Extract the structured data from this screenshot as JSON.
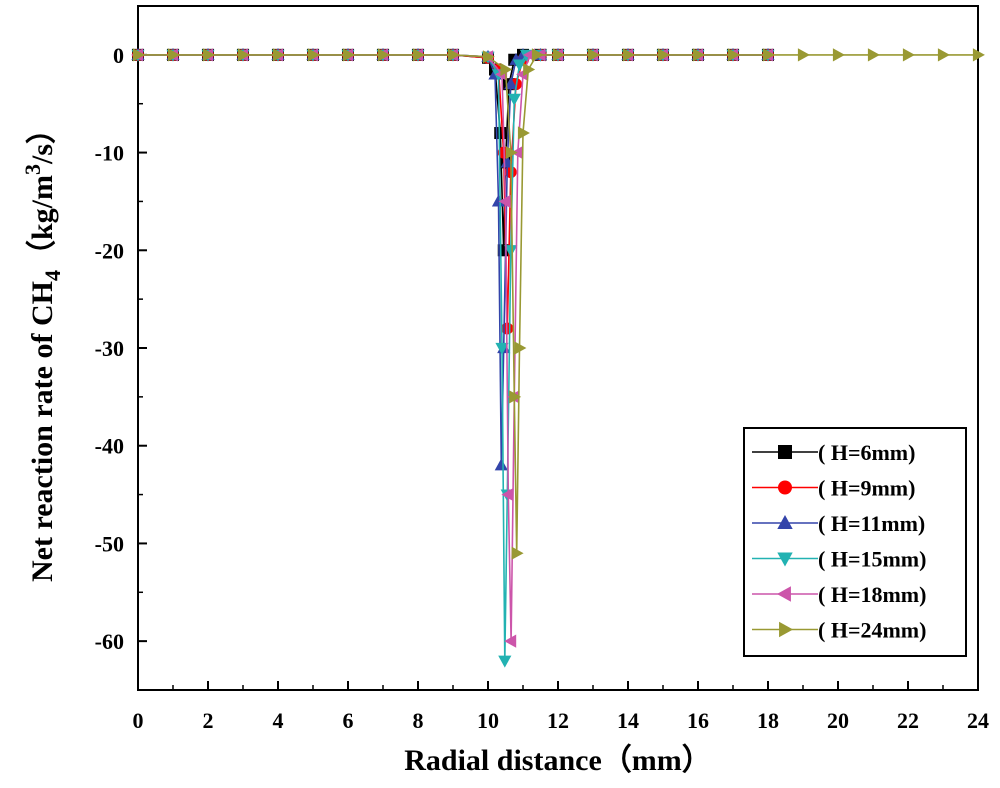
{
  "chart_data": {
    "type": "line",
    "title": "",
    "xlabel": "Radial distance（mm）",
    "ylabel": {
      "main": "Net reaction rate of CH",
      "sub": "4",
      "unit_pre": "（kg/m",
      "sup": "3",
      "unit_post": "/s）"
    },
    "xlim": [
      0,
      24
    ],
    "ylim": [
      -65,
      5
    ],
    "xticks": [
      0,
      2,
      4,
      6,
      8,
      10,
      12,
      14,
      16,
      18,
      20,
      22,
      24
    ],
    "yticks": [
      0,
      -10,
      -20,
      -30,
      -40,
      -50,
      -60
    ],
    "grid": false,
    "legend_position": "bottom-right",
    "series": [
      {
        "name": "( H=6mm)",
        "color": "#000000",
        "marker": "square",
        "dash": "solid",
        "x": [
          0,
          1,
          2,
          3,
          4,
          5,
          6,
          7,
          8,
          9,
          10,
          10.2,
          10.35,
          10.45,
          10.5,
          10.6,
          10.75,
          11.0,
          11.5,
          12,
          13,
          14,
          15,
          16,
          17,
          18
        ],
        "y": [
          0,
          0,
          0,
          0,
          0,
          0,
          0,
          0,
          0,
          0,
          -0.3,
          -1.5,
          -8,
          -20,
          -11,
          -3,
          -0.5,
          0,
          0,
          0,
          0,
          0,
          0,
          0,
          0,
          0
        ]
      },
      {
        "name": "( H=9mm)",
        "color": "#ff0000",
        "marker": "circle",
        "dash": "solid",
        "x": [
          0,
          1,
          2,
          3,
          4,
          5,
          6,
          7,
          8,
          9,
          10,
          10.3,
          10.45,
          10.55,
          10.65,
          10.8,
          11.0,
          11.5,
          12,
          13,
          14,
          15,
          16,
          17,
          18
        ],
        "y": [
          0,
          0,
          0,
          0,
          0,
          0,
          0,
          0,
          0,
          0,
          -0.3,
          -1.5,
          -10,
          -28,
          -12,
          -3,
          -0.5,
          0,
          0,
          0,
          0,
          0,
          0,
          0,
          0
        ]
      },
      {
        "name": "( H=11mm)",
        "color": "#3344aa",
        "marker": "triangle-up",
        "dash": "solid",
        "x": [
          0,
          1,
          2,
          3,
          4,
          5,
          6,
          7,
          8,
          9,
          10,
          10.2,
          10.3,
          10.38,
          10.45,
          10.55,
          10.65,
          10.8,
          11.0,
          11.5,
          12,
          13,
          14,
          15,
          16,
          17,
          18
        ],
        "y": [
          0,
          0,
          0,
          0,
          0,
          0,
          0,
          0,
          0,
          0,
          -0.2,
          -2,
          -15,
          -42,
          -30,
          -11,
          -3,
          -0.5,
          0,
          0,
          0,
          0,
          0,
          0,
          0,
          0,
          0
        ]
      },
      {
        "name": "( H=15mm)",
        "color": "#22b2b2",
        "marker": "triangle-down",
        "dash": "solid",
        "x": [
          0,
          1,
          2,
          3,
          4,
          5,
          6,
          7,
          8,
          9,
          10,
          10.3,
          10.4,
          10.48,
          10.55,
          10.65,
          10.75,
          10.9,
          11.1,
          11.5,
          12,
          13,
          14,
          15,
          16,
          17,
          18
        ],
        "y": [
          0,
          0,
          0,
          0,
          0,
          0,
          0,
          0,
          0,
          0,
          -0.2,
          -2,
          -30,
          -62,
          -45,
          -20,
          -4.5,
          -1,
          0,
          0,
          0,
          0,
          0,
          0,
          0,
          0,
          0
        ]
      },
      {
        "name": "( H=18mm)",
        "color": "#cc55aa",
        "marker": "triangle-left",
        "dash": "solid",
        "x": [
          0,
          1,
          2,
          3,
          4,
          5,
          6,
          7,
          8,
          9,
          10,
          10.4,
          10.5,
          10.58,
          10.66,
          10.75,
          10.85,
          11.0,
          11.2,
          11.5,
          12,
          13,
          14,
          15,
          16,
          17,
          18
        ],
        "y": [
          0,
          0,
          0,
          0,
          0,
          0,
          0,
          0,
          0,
          0,
          -0.2,
          -2,
          -15,
          -45,
          -60,
          -35,
          -10,
          -2,
          0,
          0,
          0,
          0,
          0,
          0,
          0,
          0,
          0
        ]
      },
      {
        "name": "( H=24mm)",
        "color": "#999933",
        "marker": "triangle-right",
        "dash": "solid",
        "x": [
          0,
          1,
          2,
          3,
          4,
          5,
          6,
          7,
          8,
          9,
          10,
          10.5,
          10.65,
          10.75,
          10.82,
          10.9,
          11.0,
          11.15,
          11.4,
          12,
          13,
          14,
          15,
          16,
          17,
          18,
          19,
          20,
          21,
          22,
          23,
          24
        ],
        "y": [
          0,
          0,
          0,
          0,
          0,
          0,
          0,
          0,
          0,
          0,
          -0.2,
          -1.5,
          -10,
          -35,
          -51,
          -30,
          -8,
          -1.5,
          0,
          0,
          0,
          0,
          0,
          0,
          0,
          0,
          0,
          0,
          0,
          0,
          0,
          0
        ]
      }
    ]
  }
}
